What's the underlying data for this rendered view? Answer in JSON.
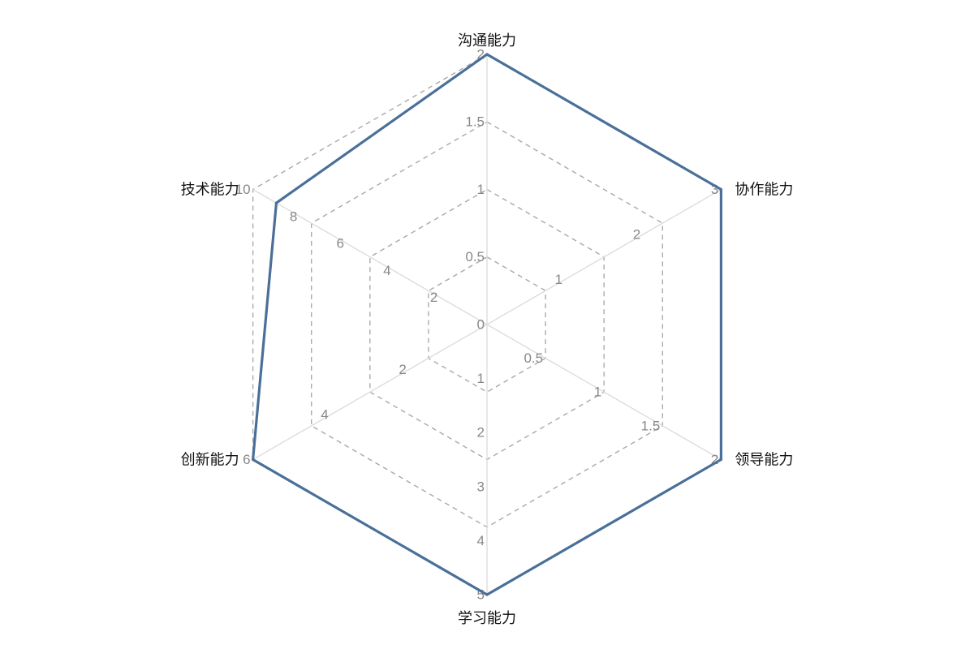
{
  "chart_data": {
    "type": "radar",
    "title": "",
    "indicators": [
      {
        "name": "沟通能力",
        "max": 2,
        "ticks": [
          "0",
          "0.5",
          "1",
          "1.5",
          "2"
        ]
      },
      {
        "name": "协作能力",
        "max": 3,
        "ticks": [
          "1",
          "2",
          "3"
        ]
      },
      {
        "name": "领导能力",
        "max": 2,
        "ticks": [
          "0.5",
          "1",
          "1.5",
          "2"
        ]
      },
      {
        "name": "学习能力",
        "max": 5,
        "ticks": [
          "1",
          "2",
          "3",
          "4",
          "5"
        ]
      },
      {
        "name": "创新能力",
        "max": 6,
        "ticks": [
          "2",
          "4",
          "6"
        ]
      },
      {
        "name": "技术能力",
        "max": 10,
        "ticks": [
          "2",
          "4",
          "6",
          "8",
          "10"
        ]
      }
    ],
    "series": [
      {
        "values": [
          2,
          3,
          2,
          5,
          6,
          9
        ],
        "color": "#4a6f99"
      }
    ],
    "split_number": 4,
    "grid_line_style": "dashed",
    "legend": "none"
  }
}
